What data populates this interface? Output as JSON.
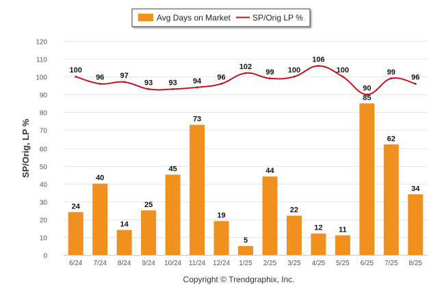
{
  "chart_data": {
    "type": "bar",
    "categories": [
      "6/24",
      "7/24",
      "8/24",
      "9/24",
      "10/24",
      "11/24",
      "12/24",
      "1/25",
      "2/25",
      "3/25",
      "4/25",
      "5/25",
      "6/25",
      "7/25",
      "8/25"
    ],
    "series": [
      {
        "name": "Avg Days on Market",
        "type": "bar",
        "color": "#F0901E",
        "values": [
          24,
          40,
          14,
          25,
          45,
          73,
          19,
          5,
          44,
          22,
          12,
          11,
          85,
          62,
          34
        ]
      },
      {
        "name": "SP/Orig LP %",
        "type": "line",
        "color": "#C0141C",
        "values": [
          100,
          96,
          97,
          93,
          93,
          94,
          96,
          102,
          99,
          100,
          106,
          100,
          90,
          99,
          96
        ]
      }
    ],
    "ylabel": "SP/Orig, LP %",
    "ylim": [
      0,
      120
    ],
    "yticks": [
      0,
      10,
      20,
      30,
      40,
      50,
      60,
      70,
      80,
      90,
      100,
      110,
      120
    ],
    "grid": true,
    "legend_position": "top-center"
  },
  "footer": {
    "copyright": "Copyright © Trendgraphix, Inc."
  }
}
